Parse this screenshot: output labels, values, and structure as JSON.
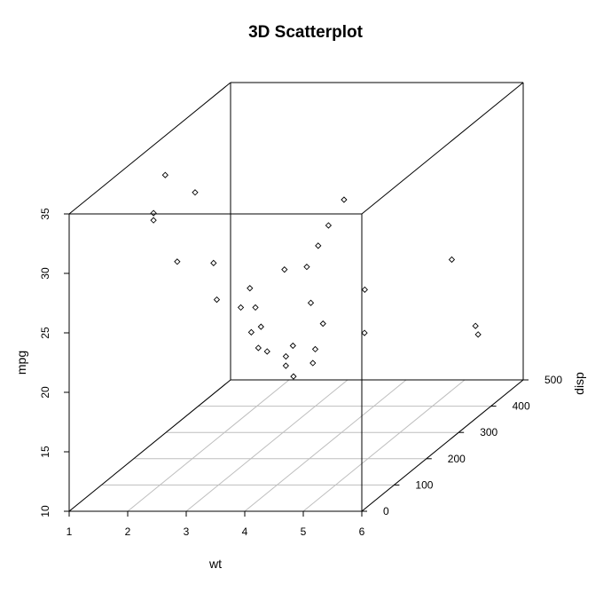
{
  "chart_data": {
    "type": "scatter",
    "title": "3D Scatterplot",
    "xlabel": "wt",
    "ylabel": "mpg",
    "zlabel": "disp",
    "xlim": [
      1,
      6
    ],
    "ylim": [
      10,
      35
    ],
    "zlim": [
      0,
      500
    ],
    "x_ticks": [
      "1",
      "2",
      "3",
      "4",
      "5",
      "6"
    ],
    "y_ticks": [
      "10",
      "15",
      "20",
      "25",
      "30",
      "35"
    ],
    "z_ticks": [
      "0",
      "100",
      "200",
      "300",
      "400",
      "500"
    ],
    "grid": "floor",
    "points": [
      {
        "x": 2.2,
        "y": 36.5,
        "z": 80
      },
      {
        "x": 2.0,
        "y": 33.3,
        "z": 80
      },
      {
        "x": 2.0,
        "y": 32.7,
        "z": 80
      },
      {
        "x": 2.6,
        "y": 34.6,
        "z": 100
      },
      {
        "x": 2.35,
        "y": 29.0,
        "z": 90
      },
      {
        "x": 2.75,
        "y": 28.0,
        "z": 130
      },
      {
        "x": 2.75,
        "y": 24.7,
        "z": 140
      },
      {
        "x": 3.05,
        "y": 23.6,
        "z": 160
      },
      {
        "x": 3.15,
        "y": 25.0,
        "z": 170
      },
      {
        "x": 3.3,
        "y": 24.8,
        "z": 250
      },
      {
        "x": 3.35,
        "y": 23.7,
        "z": 310
      },
      {
        "x": 3.3,
        "y": 23.6,
        "z": 160
      },
      {
        "x": 3.45,
        "y": 22.2,
        "z": 150
      },
      {
        "x": 3.5,
        "y": 26.3,
        "z": 350
      },
      {
        "x": 3.6,
        "y": 27.8,
        "z": 380
      },
      {
        "x": 3.6,
        "y": 25.7,
        "z": 300
      },
      {
        "x": 3.45,
        "y": 22.4,
        "z": 120
      },
      {
        "x": 3.75,
        "y": 22.0,
        "z": 250
      },
      {
        "x": 3.35,
        "y": 20.2,
        "z": 160
      },
      {
        "x": 3.5,
        "y": 19.9,
        "z": 160
      },
      {
        "x": 3.6,
        "y": 18.6,
        "z": 200
      },
      {
        "x": 3.72,
        "y": 19.5,
        "z": 200
      },
      {
        "x": 3.82,
        "y": 18.7,
        "z": 160
      },
      {
        "x": 3.82,
        "y": 19.7,
        "z": 275
      },
      {
        "x": 3.95,
        "y": 17.8,
        "z": 160
      },
      {
        "x": 3.95,
        "y": 17.6,
        "z": 220
      },
      {
        "x": 3.55,
        "y": 17.0,
        "z": 300
      },
      {
        "x": 4.12,
        "y": 20.9,
        "z": 350
      },
      {
        "x": 3.95,
        "y": 16.6,
        "z": 380
      },
      {
        "x": 5.0,
        "y": 21.0,
        "z": 460
      },
      {
        "x": 5.35,
        "y": 15.2,
        "z": 470
      },
      {
        "x": 5.45,
        "y": 14.7,
        "z": 460
      }
    ]
  }
}
